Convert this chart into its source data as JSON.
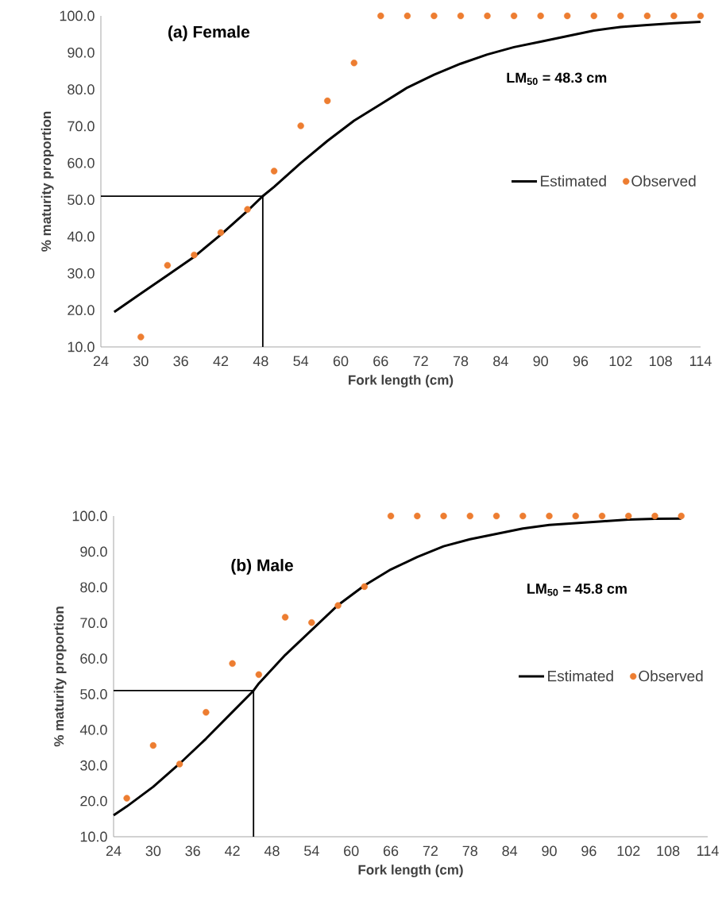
{
  "chart_data": [
    {
      "type": "line",
      "title": "(a) Female",
      "xlabel": "Fork length (cm)",
      "ylabel": "% maturity proportion",
      "annotations": [
        "LM$_{50}$ = 48.3 cm"
      ],
      "xlim": [
        24,
        114
      ],
      "ylim": [
        10,
        100
      ],
      "xticks": [
        24,
        30,
        36,
        42,
        48,
        54,
        60,
        66,
        72,
        78,
        84,
        90,
        96,
        102,
        108,
        114
      ],
      "yticks": [
        {
          "value": 10,
          "label": "10.0"
        },
        {
          "value": 20,
          "label": "20.0"
        },
        {
          "value": 30,
          "label": "30.0"
        },
        {
          "value": 40,
          "label": "40.0"
        },
        {
          "value": 50,
          "label": "50.0"
        },
        {
          "value": 60,
          "label": "60.0"
        },
        {
          "value": 70,
          "label": "70.0"
        },
        {
          "value": 80,
          "label": "80.0"
        },
        {
          "value": 90,
          "label": "90.0"
        },
        {
          "value": 100,
          "label": "100.0"
        }
      ],
      "legend": "right",
      "series": [
        {
          "name": "Estimated",
          "color": "#000000",
          "marker": "none",
          "x": [
            26,
            30,
            34,
            38,
            42,
            46,
            48.3,
            50,
            54,
            58,
            62,
            66,
            70,
            74,
            78,
            82,
            86,
            90,
            94,
            98,
            102,
            106,
            110,
            114
          ],
          "values": [
            19.5,
            24.5,
            29.5,
            34.5,
            40.5,
            47,
            51,
            53.5,
            60,
            66,
            71.5,
            76,
            80.5,
            84,
            87,
            89.5,
            91.5,
            93,
            94.5,
            96,
            97,
            97.5,
            98,
            98.4
          ]
        },
        {
          "name": "Observed",
          "type": "scatter",
          "color": "#ed7d31",
          "marker": "circle",
          "x": [
            30,
            34,
            38,
            42,
            46,
            50,
            54,
            58,
            62,
            66,
            70,
            74,
            78,
            82,
            86,
            90,
            94,
            98,
            102,
            106,
            110,
            114
          ],
          "values": [
            12.7,
            32.2,
            35.0,
            41.1,
            47.4,
            57.8,
            70.1,
            76.9,
            87.2,
            100,
            100,
            100,
            100,
            100,
            100,
            100,
            100,
            100,
            100,
            100,
            100,
            100
          ]
        },
        {
          "color": "#000000",
          "marker": "none",
          "x": [
            24,
            48.3,
            48.3
          ],
          "values": [
            51,
            51,
            10
          ]
        }
      ]
    },
    {
      "type": "line",
      "title": "(b) Male",
      "xlabel": "Fork length (cm)",
      "ylabel": "% maturity proportion",
      "annotations": [
        "LM$_{50}$ = 45.8 cm"
      ],
      "xlim": [
        24,
        114
      ],
      "ylim": [
        10,
        100
      ],
      "xticks": [
        24,
        30,
        36,
        42,
        48,
        54,
        60,
        66,
        72,
        78,
        84,
        90,
        96,
        102,
        108,
        114
      ],
      "yticks": [
        {
          "value": 10,
          "label": "10.0"
        },
        {
          "value": 20,
          "label": "20.0"
        },
        {
          "value": 30,
          "label": "30.0"
        },
        {
          "value": 40,
          "label": "40.0"
        },
        {
          "value": 50,
          "label": "50.0"
        },
        {
          "value": 60,
          "label": "60.0"
        },
        {
          "value": 70,
          "label": "70.0"
        },
        {
          "value": 80,
          "label": "80.0"
        },
        {
          "value": 90,
          "label": "90.0"
        },
        {
          "value": 100,
          "label": "100.0"
        }
      ],
      "legend": "right",
      "series": [
        {
          "name": "Estimated",
          "color": "#000000",
          "marker": "none",
          "x": [
            24,
            26,
            30,
            34,
            38,
            42,
            45.2,
            46,
            50,
            54,
            58,
            62,
            66,
            70,
            74,
            78,
            82,
            86,
            90,
            94,
            98,
            102,
            106,
            110
          ],
          "values": [
            16,
            18.5,
            24,
            30.5,
            37.5,
            45,
            51,
            53,
            61,
            68,
            75,
            80.5,
            85,
            88.5,
            91.5,
            93.5,
            95,
            96.5,
            97.5,
            98,
            98.5,
            99,
            99.2,
            99.3
          ]
        },
        {
          "name": "Observed",
          "type": "scatter",
          "color": "#ed7d31",
          "marker": "circle",
          "x": [
            26,
            30,
            34,
            38,
            42,
            46,
            50,
            54,
            58,
            62,
            66,
            70,
            74,
            78,
            82,
            86,
            90,
            94,
            98,
            102,
            106,
            110
          ],
          "values": [
            20.8,
            35.6,
            30.4,
            44.9,
            58.6,
            55.5,
            71.6,
            70.1,
            74.9,
            80.2,
            100,
            100,
            100,
            100,
            100,
            100,
            100,
            100,
            100,
            100,
            100,
            100
          ]
        },
        {
          "color": "#000000",
          "marker": "none",
          "x": [
            24,
            45.2,
            45.2
          ],
          "values": [
            51,
            51,
            10
          ]
        }
      ]
    }
  ]
}
